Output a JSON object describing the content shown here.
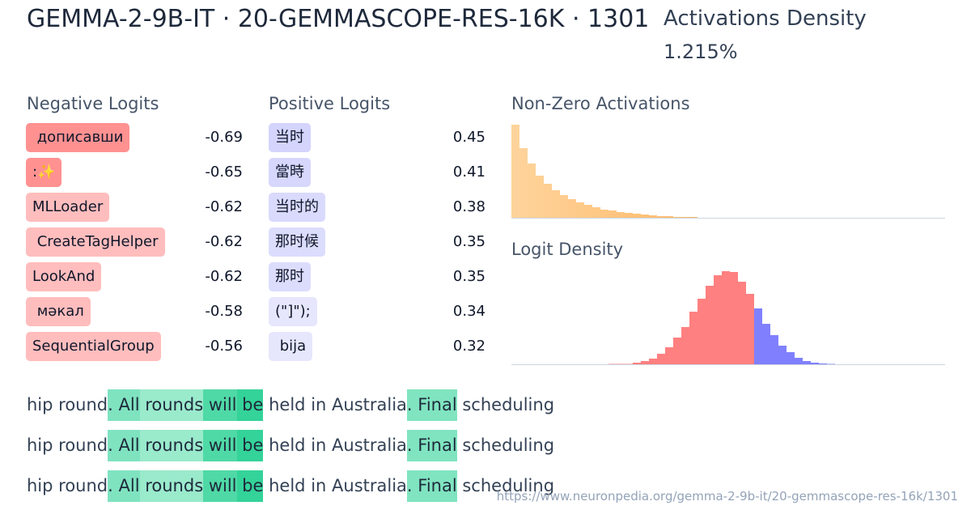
{
  "header": {
    "title": "GEMMA-2-9B-IT · 20-GEMMASCOPE-RES-16K · 1301",
    "density_label": "Activations Density",
    "density_value": "1.215%"
  },
  "negative_logits": {
    "title": "Negative Logits",
    "color_strong": "#ff9191",
    "color_weak": "#ffbdbd",
    "items": [
      {
        "token": " дописавши",
        "value": "-0.69",
        "strong": true
      },
      {
        "token": ":✨",
        "value": "-0.65",
        "strong": true
      },
      {
        "token": "MLLoader",
        "value": "-0.62",
        "strong": false
      },
      {
        "token": " CreateTagHelper",
        "value": "-0.62",
        "strong": false
      },
      {
        "token": "LookAnd",
        "value": "-0.62",
        "strong": false
      },
      {
        "token": " мәкал",
        "value": "-0.58",
        "strong": false
      },
      {
        "token": "SequentialGroup",
        "value": "-0.56",
        "strong": false
      }
    ]
  },
  "positive_logits": {
    "title": "Positive Logits",
    "items": [
      {
        "token": "当时",
        "value": "0.45",
        "color": "#d4d4fd"
      },
      {
        "token": "當時",
        "value": "0.41",
        "color": "#d7d7fd"
      },
      {
        "token": "当时的",
        "value": "0.38",
        "color": "#dadafd"
      },
      {
        "token": "那时候",
        "value": "0.35",
        "color": "#dcdcfd"
      },
      {
        "token": "那时",
        "value": "0.35",
        "color": "#dcdcfd"
      },
      {
        "token": "(\"]\");",
        "value": "0.34",
        "color": "#e6e6fd"
      },
      {
        "token": " bija",
        "value": "0.32",
        "color": "#e6e6fd"
      }
    ]
  },
  "chart_data": [
    {
      "type": "bar",
      "title": "Non-Zero Activations",
      "color_start": "#fed39b",
      "color_end": "#fdba6b",
      "values": [
        115,
        86,
        67,
        52,
        42,
        34,
        28,
        23,
        19,
        16,
        13,
        10,
        9,
        7,
        6,
        5,
        4,
        3,
        2,
        2,
        1,
        1,
        1
      ]
    },
    {
      "type": "bar",
      "title": "Logit Density",
      "negative_color": "#ff8080",
      "positive_color": "#8080ff",
      "negative_values": [
        0.5,
        0.5,
        0.5,
        2,
        4,
        7,
        13,
        21,
        33,
        46,
        65,
        81,
        97,
        110,
        115,
        114,
        102,
        87
      ],
      "positive_values": [
        69,
        50,
        36,
        23,
        15,
        8,
        4,
        2,
        1,
        0.5
      ]
    }
  ],
  "activation_examples": {
    "rows": [
      [
        {
          "t": "hip",
          "c": ""
        },
        {
          "t": " round",
          "c": ""
        },
        {
          "t": ".",
          "c": "#7fe3c0"
        },
        {
          "t": " All",
          "c": "#7fe3c0"
        },
        {
          "t": " rounds",
          "c": "#9aeacc"
        },
        {
          "t": " will",
          "c": "#4fd9a6"
        },
        {
          "t": " be",
          "c": "#34d399"
        },
        {
          "t": " held",
          "c": ""
        },
        {
          "t": " in",
          "c": ""
        },
        {
          "t": " Australia",
          "c": ""
        },
        {
          "t": ".",
          "c": "#80e4c0"
        },
        {
          "t": " Final",
          "c": "#80e4c0"
        },
        {
          "t": " scheduling",
          "c": ""
        }
      ],
      [
        {
          "t": "hip",
          "c": ""
        },
        {
          "t": " round",
          "c": ""
        },
        {
          "t": ".",
          "c": "#7fe3c0"
        },
        {
          "t": " All",
          "c": "#7fe3c0"
        },
        {
          "t": " rounds",
          "c": "#9aeacc"
        },
        {
          "t": " will",
          "c": "#4fd9a6"
        },
        {
          "t": " be",
          "c": "#34d399"
        },
        {
          "t": " held",
          "c": ""
        },
        {
          "t": " in",
          "c": ""
        },
        {
          "t": " Australia",
          "c": ""
        },
        {
          "t": ".",
          "c": "#80e4c0"
        },
        {
          "t": " Final",
          "c": "#80e4c0"
        },
        {
          "t": " scheduling",
          "c": ""
        }
      ],
      [
        {
          "t": "hip",
          "c": ""
        },
        {
          "t": " round",
          "c": ""
        },
        {
          "t": ".",
          "c": "#7fe3c0"
        },
        {
          "t": " All",
          "c": "#7fe3c0"
        },
        {
          "t": " rounds",
          "c": "#9aeacc"
        },
        {
          "t": " will",
          "c": "#4fd9a6"
        },
        {
          "t": " be",
          "c": "#34d399"
        },
        {
          "t": " held",
          "c": ""
        },
        {
          "t": " in",
          "c": ""
        },
        {
          "t": " Australia",
          "c": ""
        },
        {
          "t": ".",
          "c": "#80e4c0"
        },
        {
          "t": " Final",
          "c": "#80e4c0"
        },
        {
          "t": " scheduling",
          "c": ""
        }
      ]
    ]
  },
  "footer": {
    "url": "https://www.neuronpedia.org/gemma-2-9b-it/20-gemmascope-res-16k/1301"
  }
}
